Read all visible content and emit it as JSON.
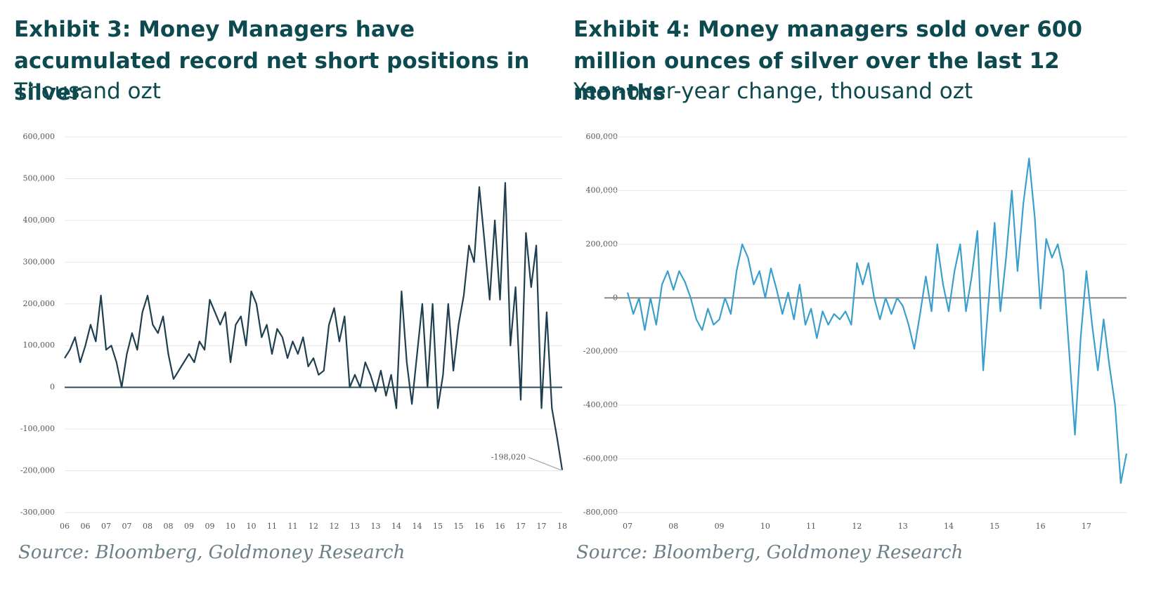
{
  "chart_data": [
    {
      "type": "line",
      "title": "Exhibit 3: Money Managers have accumulated record net short positions in silver",
      "subtitle": "Thousand ozt",
      "source": "Source: Bloomberg, Goldmoney Research",
      "annotation": "-198,020",
      "color": "#1f3f4f",
      "zero_line_color": "#2e4f5a",
      "grid": true,
      "xlim": [
        6,
        18
      ],
      "xticks": [
        {
          "value": 6,
          "label": "06"
        },
        {
          "value": 6.5,
          "label": "06"
        },
        {
          "value": 7,
          "label": "07"
        },
        {
          "value": 7.5,
          "label": "07"
        },
        {
          "value": 8,
          "label": "08"
        },
        {
          "value": 8.5,
          "label": "08"
        },
        {
          "value": 9,
          "label": "09"
        },
        {
          "value": 9.5,
          "label": "09"
        },
        {
          "value": 10,
          "label": "10"
        },
        {
          "value": 10.5,
          "label": "10"
        },
        {
          "value": 11,
          "label": "11"
        },
        {
          "value": 11.5,
          "label": "11"
        },
        {
          "value": 12,
          "label": "12"
        },
        {
          "value": 12.5,
          "label": "12"
        },
        {
          "value": 13,
          "label": "13"
        },
        {
          "value": 13.5,
          "label": "13"
        },
        {
          "value": 14,
          "label": "14"
        },
        {
          "value": 14.5,
          "label": "14"
        },
        {
          "value": 15,
          "label": "15"
        },
        {
          "value": 15.5,
          "label": "15"
        },
        {
          "value": 16,
          "label": "16"
        },
        {
          "value": 16.5,
          "label": "16"
        },
        {
          "value": 17,
          "label": "17"
        },
        {
          "value": 17.5,
          "label": "17"
        },
        {
          "value": 18,
          "label": "18"
        }
      ],
      "ylim": [
        -300000,
        600000
      ],
      "yticks": [
        {
          "value": -300000,
          "label": "-300,000"
        },
        {
          "value": -200000,
          "label": "-200,000"
        },
        {
          "value": -100000,
          "label": "-100,000"
        },
        0,
        {
          "value": 100000,
          "label": "100,000"
        },
        {
          "value": 200000,
          "label": "200,000"
        },
        {
          "value": 300000,
          "label": "300,000"
        },
        {
          "value": 400000,
          "label": "400,000"
        },
        {
          "value": 500000,
          "label": "500,000"
        },
        {
          "value": 600000,
          "label": "600,000"
        }
      ],
      "x": [
        6,
        6.125,
        6.25,
        6.375,
        6.5,
        6.625,
        6.75,
        6.875,
        7,
        7.125,
        7.25,
        7.375,
        7.5,
        7.625,
        7.75,
        7.875,
        8,
        8.125,
        8.25,
        8.375,
        8.5,
        8.625,
        8.75,
        8.875,
        9,
        9.125,
        9.25,
        9.375,
        9.5,
        9.625,
        9.75,
        9.875,
        10,
        10.125,
        10.25,
        10.375,
        10.5,
        10.625,
        10.75,
        10.875,
        11,
        11.125,
        11.25,
        11.375,
        11.5,
        11.625,
        11.75,
        11.875,
        12,
        12.125,
        12.25,
        12.375,
        12.5,
        12.625,
        12.75,
        12.875,
        13,
        13.125,
        13.25,
        13.375,
        13.5,
        13.625,
        13.75,
        13.875,
        14,
        14.125,
        14.25,
        14.375,
        14.5,
        14.625,
        14.75,
        14.875,
        15,
        15.125,
        15.25,
        15.375,
        15.5,
        15.625,
        15.75,
        15.875,
        16,
        16.125,
        16.25,
        16.375,
        16.5,
        16.625,
        16.75,
        16.875,
        17,
        17.125,
        17.25,
        17.375,
        17.5,
        17.625,
        17.75,
        17.875,
        18
      ],
      "values": [
        70000,
        90000,
        120000,
        60000,
        100000,
        150000,
        110000,
        220000,
        90000,
        100000,
        60000,
        0,
        80000,
        130000,
        90000,
        180000,
        220000,
        150000,
        130000,
        170000,
        80000,
        20000,
        40000,
        60000,
        80000,
        60000,
        110000,
        90000,
        210000,
        180000,
        150000,
        180000,
        60000,
        150000,
        170000,
        100000,
        230000,
        200000,
        120000,
        150000,
        80000,
        140000,
        120000,
        70000,
        110000,
        80000,
        120000,
        50000,
        70000,
        30000,
        40000,
        150000,
        190000,
        110000,
        170000,
        0,
        30000,
        0,
        60000,
        30000,
        -10000,
        40000,
        -20000,
        30000,
        -50000,
        230000,
        60000,
        -40000,
        80000,
        200000,
        0,
        200000,
        -50000,
        30000,
        200000,
        40000,
        150000,
        220000,
        340000,
        300000,
        480000,
        350000,
        210000,
        400000,
        210000,
        490000,
        100000,
        240000,
        -30000,
        370000,
        240000,
        340000,
        -50000,
        180000,
        -50000,
        -120000,
        -198020
      ]
    },
    {
      "type": "line",
      "title": "Exhibit 4: Money managers sold over 600 million ounces of silver over the last 12 months",
      "subtitle": "Year-over-year change, thousand ozt",
      "source": "Source: Bloomberg, Goldmoney Research",
      "color": "#3a9fcc",
      "zero_line_color": "#888888",
      "grid": true,
      "xlim": [
        7,
        17.875
      ],
      "xticks": [
        {
          "value": 7,
          "label": "07"
        },
        {
          "value": 8,
          "label": "08"
        },
        {
          "value": 9,
          "label": "09"
        },
        10,
        11,
        12,
        13,
        14,
        15,
        16,
        17
      ],
      "ylim": [
        -800000,
        600000
      ],
      "yticks": [
        {
          "value": -800000,
          "label": "-800,000"
        },
        {
          "value": -600000,
          "label": "-600,000"
        },
        {
          "value": -400000,
          "label": "-400,000"
        },
        {
          "value": -200000,
          "label": "-200,000"
        },
        0,
        {
          "value": 200000,
          "label": "200,000"
        },
        {
          "value": 400000,
          "label": "400,000"
        },
        {
          "value": 600000,
          "label": "600,000"
        }
      ],
      "x": [
        7,
        7.125,
        7.25,
        7.375,
        7.5,
        7.625,
        7.75,
        7.875,
        8,
        8.125,
        8.25,
        8.375,
        8.5,
        8.625,
        8.75,
        8.875,
        9,
        9.125,
        9.25,
        9.375,
        9.5,
        9.625,
        9.75,
        9.875,
        10,
        10.125,
        10.25,
        10.375,
        10.5,
        10.625,
        10.75,
        10.875,
        11,
        11.125,
        11.25,
        11.375,
        11.5,
        11.625,
        11.75,
        11.875,
        12,
        12.125,
        12.25,
        12.375,
        12.5,
        12.625,
        12.75,
        12.875,
        13,
        13.125,
        13.25,
        13.375,
        13.5,
        13.625,
        13.75,
        13.875,
        14,
        14.125,
        14.25,
        14.375,
        14.5,
        14.625,
        14.75,
        14.875,
        15,
        15.125,
        15.25,
        15.375,
        15.5,
        15.625,
        15.75,
        15.875,
        16,
        16.125,
        16.25,
        16.375,
        16.5,
        16.625,
        16.75,
        16.875,
        17,
        17.125,
        17.25,
        17.375,
        17.5,
        17.625,
        17.75,
        17.875
      ],
      "values": [
        20000,
        -60000,
        0,
        -120000,
        0,
        -100000,
        50000,
        100000,
        30000,
        100000,
        60000,
        0,
        -80000,
        -120000,
        -40000,
        -100000,
        -80000,
        0,
        -60000,
        100000,
        200000,
        150000,
        50000,
        100000,
        0,
        110000,
        30000,
        -60000,
        20000,
        -80000,
        50000,
        -100000,
        -40000,
        -150000,
        -50000,
        -100000,
        -60000,
        -80000,
        -50000,
        -100000,
        130000,
        50000,
        130000,
        0,
        -80000,
        0,
        -60000,
        0,
        -30000,
        -100000,
        -190000,
        -60000,
        80000,
        -50000,
        200000,
        50000,
        -50000,
        100000,
        200000,
        -50000,
        80000,
        250000,
        -270000,
        0,
        280000,
        -50000,
        150000,
        400000,
        100000,
        350000,
        520000,
        300000,
        -40000,
        220000,
        150000,
        200000,
        100000,
        -200000,
        -510000,
        -150000,
        100000,
        -100000,
        -270000,
        -80000,
        -250000,
        -400000,
        -690000,
        -580000
      ]
    }
  ]
}
